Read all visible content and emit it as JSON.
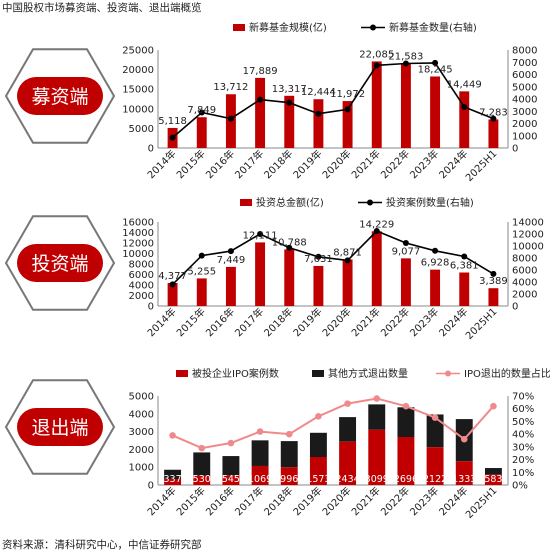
{
  "header": {
    "title": "中国股权市场募资端、投资端、退出端概览"
  },
  "footer": {
    "source": "资料来源：清科研究中心，中信证券研究部"
  },
  "colors": {
    "red": "#c00000",
    "black": "#1a1a1a",
    "pink": "#f08a8a",
    "line": "#000000"
  },
  "chart_data": [
    {
      "type": "bar",
      "section_label": "募资端",
      "categories": [
        "2014年",
        "2015年",
        "2016年",
        "2017年",
        "2018年",
        "2019年",
        "2020年",
        "2021年",
        "2022年",
        "2023年",
        "2024年",
        "2025H1"
      ],
      "series": [
        {
          "name": "新募基金规模(亿)",
          "kind": "bar",
          "axis": "left",
          "values": [
            5118,
            7849,
            13712,
            17889,
            13317,
            12444,
            11972,
            22085,
            21583,
            18245,
            14449,
            7283
          ],
          "labels": [
            "5,118",
            "7,849",
            "13,712",
            "17,889",
            "13,317",
            "12,444",
            "11,972",
            "22,085",
            "21,583",
            "18,245",
            "14,449",
            "7,283"
          ]
        },
        {
          "name": "新募基金数量(右轴)",
          "kind": "line",
          "axis": "right",
          "values": [
            850,
            2900,
            2400,
            3950,
            3700,
            2800,
            3150,
            6750,
            6900,
            6950,
            3350,
            2400
          ]
        }
      ],
      "yleft": {
        "min": 0,
        "max": 25000,
        "ticks": [
          "0",
          "5000",
          "10000",
          "15000",
          "20000",
          "25000"
        ]
      },
      "yright": {
        "min": 0,
        "max": 8000,
        "ticks": [
          "0",
          "1000",
          "2000",
          "3000",
          "4000",
          "5000",
          "6000",
          "7000",
          "8000"
        ]
      },
      "grid": false,
      "legend": "top-right"
    },
    {
      "type": "bar",
      "section_label": "投资端",
      "categories": [
        "2014年",
        "2015年",
        "2016年",
        "2017年",
        "2018年",
        "2019年",
        "2020年",
        "2021年",
        "2022年",
        "2023年",
        "2024年",
        "2025H1"
      ],
      "series": [
        {
          "name": "投资总金额(亿)",
          "kind": "bar",
          "axis": "left",
          "values": [
            4377,
            5255,
            7449,
            12111,
            10788,
            7631,
            8871,
            14229,
            9077,
            6928,
            6381,
            3389
          ],
          "labels": [
            "4,377",
            "5,255",
            "7,449",
            "12,111",
            "10,788",
            "7,631",
            "8,871",
            "14,229",
            "9,077",
            "6,928",
            "6,381",
            "3,389"
          ]
        },
        {
          "name": "投资案例数量(右轴)",
          "kind": "line",
          "axis": "right",
          "values": [
            3600,
            8400,
            9150,
            12000,
            9700,
            8200,
            7600,
            12500,
            10500,
            9200,
            8250,
            5350
          ]
        }
      ],
      "yleft": {
        "min": 0,
        "max": 16000,
        "ticks": [
          "0",
          "2000",
          "4000",
          "6000",
          "8000",
          "10000",
          "12000",
          "14000",
          "16000"
        ]
      },
      "yright": {
        "min": 0,
        "max": 14000,
        "ticks": [
          "0",
          "2000",
          "4000",
          "6000",
          "8000",
          "10000",
          "12000",
          "14000"
        ]
      },
      "grid": false,
      "legend": "top-right"
    },
    {
      "type": "bar",
      "stacked": true,
      "section_label": "退出端",
      "categories": [
        "2014年",
        "2015年",
        "2016年",
        "2017年",
        "2018年",
        "2019年",
        "2020年",
        "2021年",
        "2022年",
        "2023年",
        "2024年",
        "2025H1"
      ],
      "series": [
        {
          "name": "被投企业IPO案例数",
          "kind": "bar",
          "axis": "left",
          "values": [
            337,
            530,
            545,
            1069,
            996,
            1573,
            2434,
            3099,
            2696,
            2122,
            1333,
            583
          ],
          "labels": [
            "337",
            "530",
            "545",
            "1069",
            "996",
            "1573",
            "2434",
            "3099",
            "2696",
            "2122",
            "1333",
            "583"
          ]
        },
        {
          "name": "其他方式退出数量",
          "kind": "bar",
          "axis": "left",
          "values": [
            520,
            1300,
            1080,
            1440,
            1470,
            1360,
            1380,
            1430,
            1670,
            1840,
            2370,
            370
          ]
        },
        {
          "name": "IPO退出的数量占比(右轴)",
          "kind": "line",
          "axis": "right",
          "values": [
            0.39,
            0.29,
            0.33,
            0.42,
            0.4,
            0.54,
            0.64,
            0.68,
            0.62,
            0.53,
            0.36,
            0.62
          ]
        }
      ],
      "yleft": {
        "min": 0,
        "max": 5000,
        "ticks": [
          "0",
          "1000",
          "2000",
          "3000",
          "4000",
          "5000"
        ]
      },
      "yright": {
        "min": 0,
        "max": 0.7,
        "ticks": [
          "0%",
          "10%",
          "20%",
          "30%",
          "40%",
          "50%",
          "60%",
          "70%"
        ]
      },
      "grid": false,
      "legend": "top"
    }
  ]
}
